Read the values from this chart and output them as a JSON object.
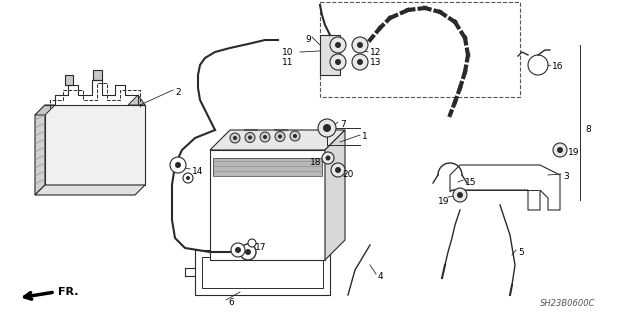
{
  "bg_color": "#ffffff",
  "lc": "#2a2a2a",
  "fig_width": 6.4,
  "fig_height": 3.19,
  "dpi": 100,
  "footer_text": "SH23B0600C",
  "arrow_label": "FR."
}
